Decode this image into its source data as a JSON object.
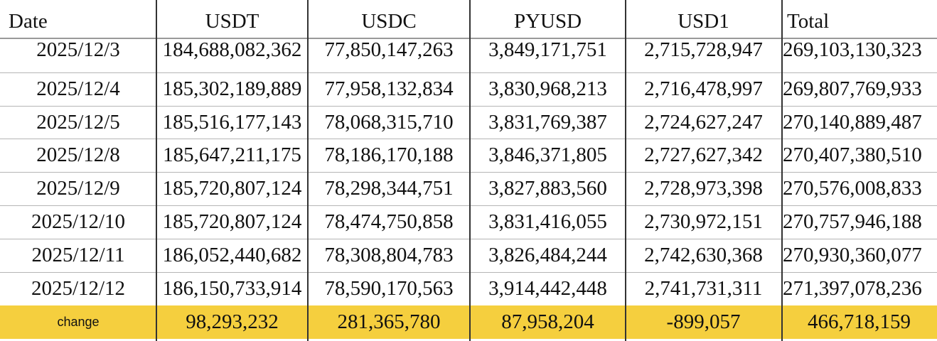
{
  "table": {
    "headers": [
      "Date",
      "USDT",
      "USDC",
      "PYUSD",
      "USD1",
      "Total"
    ],
    "rows": [
      [
        "2025/12/3",
        "184,688,082,362",
        "77,850,147,263",
        "3,849,171,751",
        "2,715,728,947",
        "269,103,130,323"
      ],
      [
        "2025/12/4",
        "185,302,189,889",
        "77,958,132,834",
        "3,830,968,213",
        "2,716,478,997",
        "269,807,769,933"
      ],
      [
        "2025/12/5",
        "185,516,177,143",
        "78,068,315,710",
        "3,831,769,387",
        "2,724,627,247",
        "270,140,889,487"
      ],
      [
        "2025/12/8",
        "185,647,211,175",
        "78,186,170,188",
        "3,846,371,805",
        "2,727,627,342",
        "270,407,380,510"
      ],
      [
        "2025/12/9",
        "185,720,807,124",
        "78,298,344,751",
        "3,827,883,560",
        "2,728,973,398",
        "270,576,008,833"
      ],
      [
        "2025/12/10",
        "185,720,807,124",
        "78,474,750,858",
        "3,831,416,055",
        "2,730,972,151",
        "270,757,946,188"
      ],
      [
        "2025/12/11",
        "186,052,440,682",
        "78,308,804,783",
        "3,826,484,244",
        "2,742,630,368",
        "270,930,360,077"
      ],
      [
        "2025/12/12",
        "186,150,733,914",
        "78,590,170,563",
        "3,914,442,448",
        "2,741,731,311",
        "271,397,078,236"
      ]
    ],
    "change_row": [
      "change",
      "98,293,232",
      "281,365,780",
      "87,958,204",
      "-899,057",
      "466,718,159"
    ]
  },
  "colors": {
    "change_row_bg": "#f5cf3e",
    "grid_line": "#b5b5b5",
    "column_divider": "#333333"
  }
}
